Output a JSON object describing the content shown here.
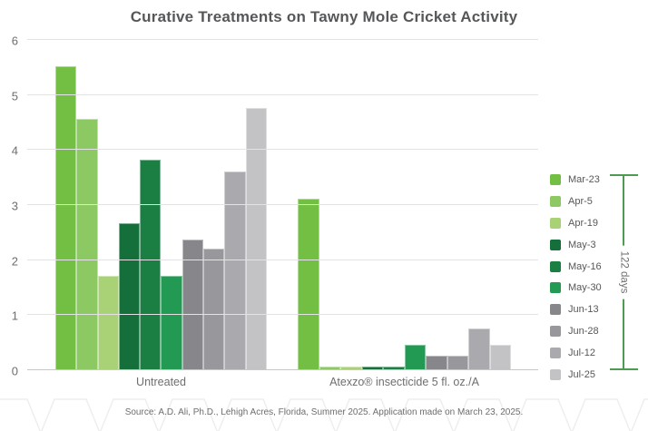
{
  "title": "Curative Treatments on Tawny Mole Cricket Activity",
  "source": "Source: A.D. Ali, Ph.D., Lehigh Acres, Florida, Summer 2025. Application made on March 23, 2025.",
  "colors": {
    "title_text": "#565759",
    "axis_text": "#6d6e71",
    "gridline": "#e3e3e6",
    "bracket_green": "#4f9b52",
    "background": "#ffffff"
  },
  "legend": {
    "bracket_label": "122 days"
  },
  "chart_data": {
    "type": "bar",
    "title": "Curative Treatments on Tawny Mole Cricket Activity",
    "xlabel": "",
    "ylabel": "",
    "ylim": [
      0,
      6
    ],
    "yticks": [
      0,
      1,
      2,
      3,
      4,
      5,
      6
    ],
    "grid": true,
    "legend_position": "right",
    "annotation": "122 days",
    "groups": [
      "Untreated",
      "Atexzo® insecticide 5 fl. oz./A"
    ],
    "series": [
      {
        "name": "Mar-23",
        "color": "#72bf44",
        "values": [
          5.5,
          3.1
        ]
      },
      {
        "name": "Apr-5",
        "color": "#8dc963",
        "values": [
          4.55,
          0.05
        ]
      },
      {
        "name": "Apr-19",
        "color": "#a9d277",
        "values": [
          1.7,
          0.05
        ]
      },
      {
        "name": "May-3",
        "color": "#156f3b",
        "values": [
          2.65,
          0.05
        ]
      },
      {
        "name": "May-16",
        "color": "#1b7f44",
        "values": [
          3.8,
          0.05
        ]
      },
      {
        "name": "May-30",
        "color": "#229a53",
        "values": [
          1.7,
          0.45
        ]
      },
      {
        "name": "Jun-13",
        "color": "#87878b",
        "values": [
          2.35,
          0.25
        ]
      },
      {
        "name": "Jun-28",
        "color": "#98989c",
        "values": [
          2.2,
          0.25
        ]
      },
      {
        "name": "Jul-12",
        "color": "#aaaaae",
        "values": [
          3.6,
          0.75
        ]
      },
      {
        "name": "Jul-25",
        "color": "#c3c3c6",
        "values": [
          4.75,
          0.45
        ]
      }
    ]
  }
}
